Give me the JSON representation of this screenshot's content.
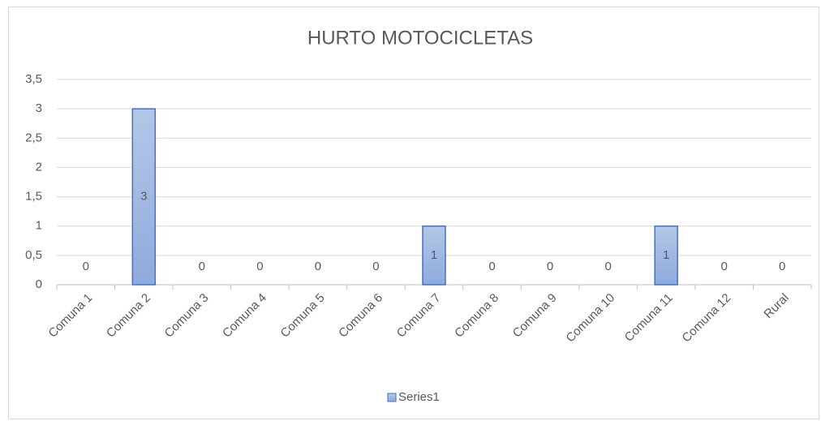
{
  "chart_data": {
    "type": "bar",
    "title": "HURTO MOTOCICLETAS",
    "categories": [
      "Comuna 1",
      "Comuna 2",
      "Comuna 3",
      "Comuna 4",
      "Comuna 5",
      "Comuna 6",
      "Comuna 7",
      "Comuna 8",
      "Comuna 9",
      "Comuna 10",
      "Comuna 11",
      "Comuna 12",
      "Rural"
    ],
    "series": [
      {
        "name": "Series1",
        "color": "#4472c4",
        "values": [
          0,
          3,
          0,
          0,
          0,
          0,
          1,
          0,
          0,
          0,
          1,
          0,
          0
        ]
      }
    ],
    "ylim": [
      0,
      3.5
    ],
    "yticks": [
      0,
      {
        "value": 0.5,
        "label": "0,5"
      },
      1,
      {
        "value": 1.5,
        "label": "1,5"
      },
      2,
      {
        "value": 2.5,
        "label": "2,5"
      },
      3,
      {
        "value": 3.5,
        "label": "3,5"
      }
    ],
    "grid": true,
    "legend": "bottom"
  }
}
